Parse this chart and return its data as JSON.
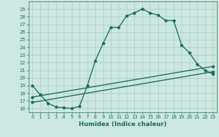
{
  "xlabel": "Humidex (Indice chaleur)",
  "bg_color": "#cce8e0",
  "grid_color": "#aacfc8",
  "line_color": "#1a6b5a",
  "xlim": [
    -0.5,
    23.5
  ],
  "ylim": [
    15.5,
    30.0
  ],
  "xticks": [
    0,
    1,
    2,
    3,
    4,
    5,
    6,
    7,
    8,
    9,
    10,
    11,
    12,
    13,
    14,
    15,
    16,
    17,
    18,
    19,
    20,
    21,
    22,
    23
  ],
  "yticks": [
    16,
    17,
    18,
    19,
    20,
    21,
    22,
    23,
    24,
    25,
    26,
    27,
    28,
    29
  ],
  "line1_x": [
    0,
    1,
    2,
    3,
    4,
    5,
    6,
    7,
    8,
    9,
    10,
    11,
    12,
    13,
    14,
    15,
    16,
    17,
    18,
    19,
    20,
    21,
    22,
    23
  ],
  "line1_y": [
    19.0,
    17.8,
    16.7,
    16.2,
    16.1,
    16.0,
    16.3,
    19.0,
    22.2,
    24.5,
    26.6,
    26.6,
    28.1,
    28.5,
    29.0,
    28.5,
    28.2,
    27.5,
    27.5,
    24.3,
    23.3,
    21.8,
    21.0,
    20.5
  ],
  "line2_x": [
    0,
    23
  ],
  "line2_y": [
    17.5,
    21.5
  ],
  "line3_x": [
    0,
    23
  ],
  "line3_y": [
    16.8,
    20.8
  ],
  "markersize": 3,
  "linewidth": 1.0,
  "tick_fontsize": 5.0,
  "xlabel_fontsize": 6.5
}
